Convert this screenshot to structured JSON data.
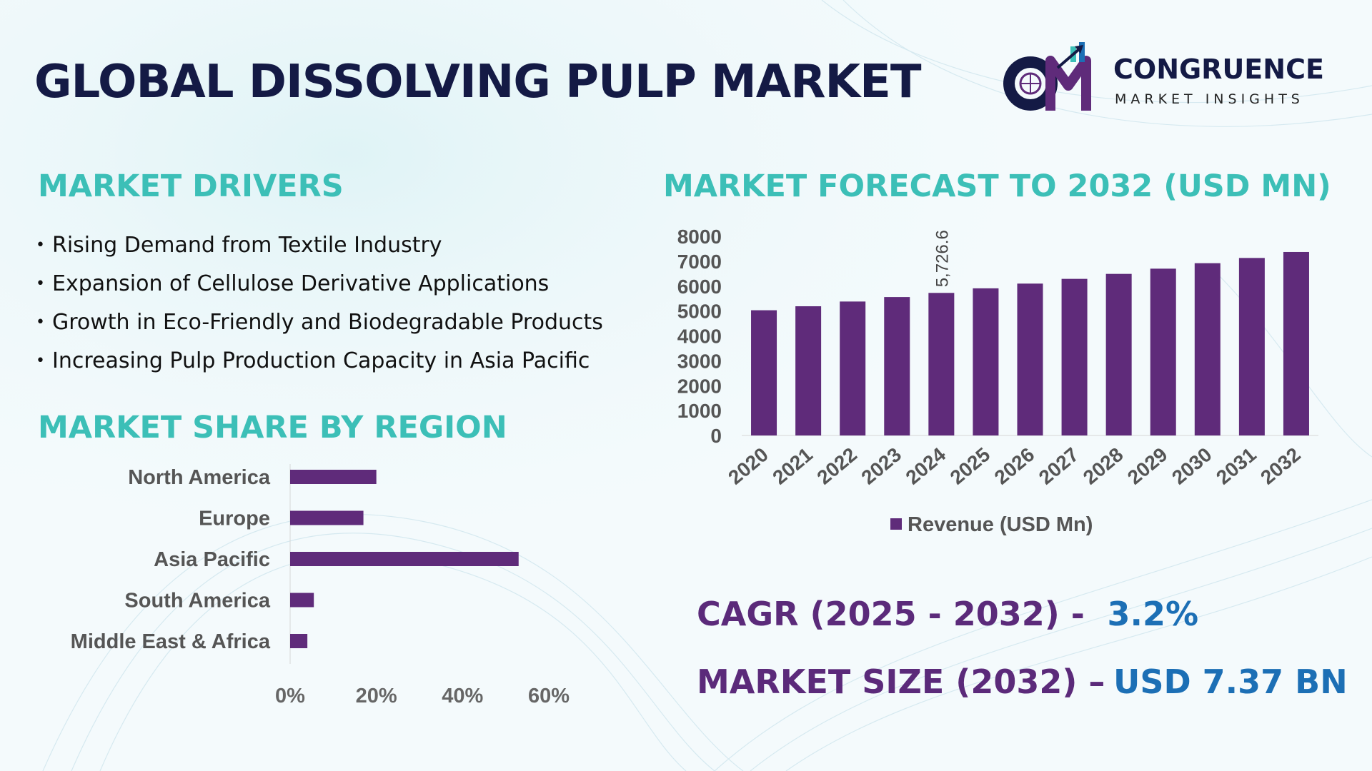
{
  "title": "GLOBAL DISSOLVING PULP MARKET",
  "brand": {
    "name": "CONGRUENCE",
    "tagline": "MARKET INSIGHTS",
    "logo_letters": "CM"
  },
  "drivers": {
    "heading": "MARKET DRIVERS",
    "items": [
      "Rising Demand from Textile Industry",
      "Expansion of Cellulose Derivative Applications",
      "Growth in Eco-Friendly and Biodegradable Products",
      "Increasing Pulp Production Capacity in Asia Pacific"
    ]
  },
  "share_section": {
    "heading": "MARKET SHARE BY REGION"
  },
  "forecast_section": {
    "heading": "MARKET FORECAST TO 2032 (USD MN)"
  },
  "kpis": {
    "cagr_label": "CAGR (2025 - 2032) -",
    "cagr_value": "3.2%",
    "size_label": "MARKET SIZE (2032) –",
    "size_value": "USD 7.37 BN"
  },
  "colors": {
    "bar": "#5f2b7a",
    "heading": "#3cbfb7",
    "title": "#141a45",
    "kpi_label": "#5b2a7a",
    "kpi_value": "#1c6fb5"
  },
  "chart_data": [
    {
      "type": "bar",
      "orientation": "horizontal",
      "categories": [
        "North America",
        "Europe",
        "Asia Pacific",
        "South America",
        "Middle East & Africa"
      ],
      "values": [
        20,
        17,
        53,
        5.5,
        4
      ],
      "xlim": [
        0,
        60
      ],
      "xticks": [
        "0%",
        "20%",
        "40%",
        "60%"
      ],
      "xtick_values": [
        0,
        20,
        40,
        60
      ],
      "grid": false
    },
    {
      "type": "bar",
      "orientation": "vertical",
      "categories": [
        "2020",
        "2021",
        "2022",
        "2023",
        "2024",
        "2025",
        "2026",
        "2027",
        "2028",
        "2029",
        "2030",
        "2031",
        "2032"
      ],
      "series": [
        {
          "name": "Revenue (USD Mn)",
          "values": [
            5030,
            5190,
            5380,
            5560,
            5726.6,
            5910,
            6100,
            6290,
            6490,
            6700,
            6920,
            7130,
            7370
          ]
        }
      ],
      "data_labels": [
        {
          "index": 4,
          "text": "5,726.6"
        }
      ],
      "ylim": [
        0,
        8000
      ],
      "yticks": [
        "0",
        "1000",
        "2000",
        "3000",
        "4000",
        "5000",
        "6000",
        "7000",
        "8000"
      ],
      "legend": "bottom",
      "grid": false
    }
  ]
}
